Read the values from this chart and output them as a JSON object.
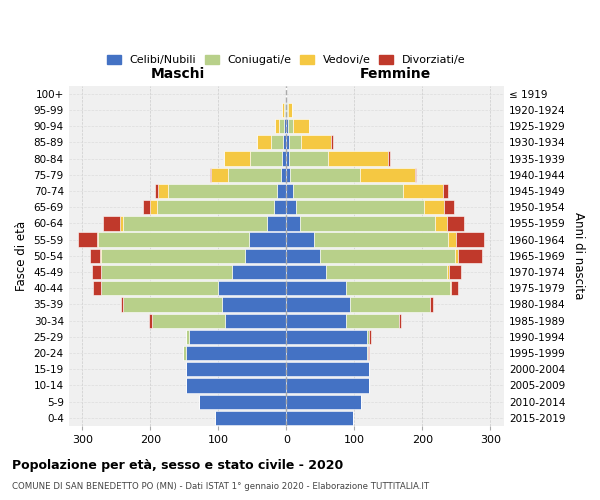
{
  "age_groups": [
    "0-4",
    "5-9",
    "10-14",
    "15-19",
    "20-24",
    "25-29",
    "30-34",
    "35-39",
    "40-44",
    "45-49",
    "50-54",
    "55-59",
    "60-64",
    "65-69",
    "70-74",
    "75-79",
    "80-84",
    "85-89",
    "90-94",
    "95-99",
    "100+"
  ],
  "birth_years": [
    "2015-2019",
    "2010-2014",
    "2005-2009",
    "2000-2004",
    "1995-1999",
    "1990-1994",
    "1985-1989",
    "1980-1984",
    "1975-1979",
    "1970-1974",
    "1965-1969",
    "1960-1964",
    "1955-1959",
    "1950-1954",
    "1945-1949",
    "1940-1944",
    "1935-1939",
    "1930-1934",
    "1925-1929",
    "1920-1924",
    "≤ 1919"
  ],
  "colors": {
    "celibe": "#4472C4",
    "coniugato": "#B8D08A",
    "vedovo": "#F5C842",
    "divorziato": "#C0392B"
  },
  "maschi": {
    "celibe": [
      105,
      128,
      148,
      148,
      148,
      143,
      90,
      95,
      100,
      80,
      60,
      55,
      28,
      18,
      14,
      8,
      6,
      5,
      3,
      2,
      1
    ],
    "coniugato": [
      0,
      0,
      0,
      0,
      4,
      4,
      108,
      145,
      172,
      192,
      212,
      222,
      212,
      172,
      160,
      78,
      48,
      18,
      8,
      2,
      0
    ],
    "vedovo": [
      0,
      0,
      0,
      0,
      0,
      0,
      0,
      0,
      0,
      0,
      2,
      2,
      4,
      10,
      14,
      24,
      38,
      20,
      6,
      2,
      0
    ],
    "divorziato": [
      0,
      0,
      0,
      0,
      0,
      0,
      4,
      3,
      12,
      13,
      15,
      28,
      25,
      10,
      5,
      2,
      0,
      0,
      0,
      0,
      0
    ]
  },
  "femmine": {
    "nubile": [
      98,
      110,
      122,
      122,
      118,
      118,
      88,
      93,
      88,
      58,
      50,
      40,
      20,
      14,
      10,
      5,
      4,
      4,
      2,
      1,
      0
    ],
    "coniugata": [
      0,
      0,
      0,
      0,
      2,
      4,
      78,
      118,
      152,
      178,
      198,
      198,
      198,
      188,
      162,
      104,
      58,
      18,
      8,
      2,
      0
    ],
    "vedova": [
      0,
      0,
      0,
      0,
      0,
      0,
      0,
      0,
      2,
      3,
      5,
      12,
      18,
      30,
      58,
      80,
      88,
      44,
      24,
      6,
      0
    ],
    "divorziata": [
      0,
      0,
      0,
      0,
      2,
      2,
      3,
      5,
      10,
      18,
      35,
      40,
      25,
      15,
      8,
      2,
      2,
      2,
      0,
      0,
      0
    ]
  },
  "xlim": 320,
  "title": "Popolazione per età, sesso e stato civile - 2020",
  "subtitle": "COMUNE DI SAN BENEDETTO PO (MN) - Dati ISTAT 1° gennaio 2020 - Elaborazione TUTTITALIA.IT",
  "ylabel_left": "Fasce di età",
  "ylabel_right": "Anni di nascita",
  "xlabel_left": "Maschi",
  "xlabel_right": "Femmine"
}
